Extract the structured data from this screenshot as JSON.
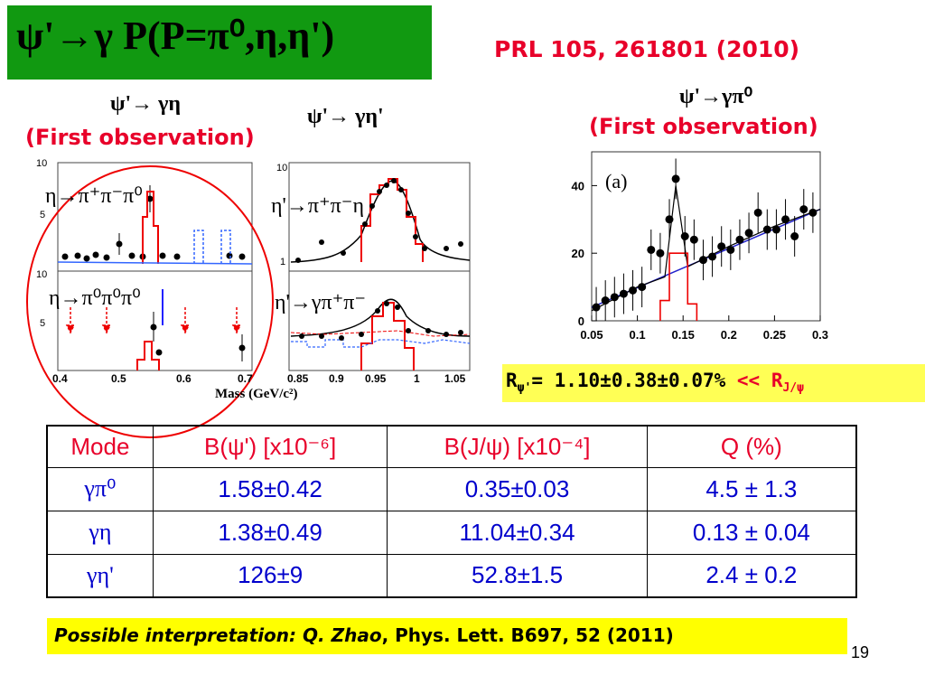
{
  "title": "ψ'→γ P(P=π⁰,η,η')",
  "reference": "PRL 105, 261801 (2010)",
  "panels": {
    "eta": {
      "heading": "ψ'→ γη",
      "note": "(First observation)",
      "top_label": "η→π⁺π⁻π⁰",
      "bottom_label": "η→π⁰π⁰π⁰"
    },
    "etaprime": {
      "heading": "ψ'→ γη'",
      "top_label": "η'→π⁺π⁻η",
      "bottom_label": "η'→γπ⁺π⁻"
    },
    "pi0": {
      "heading": "ψ'→γπ⁰",
      "note": "(First observation)",
      "panel_tag": "(a)"
    }
  },
  "mass_axis_label": "Mass (GeV/c²)",
  "ratio": {
    "lhs": "R",
    "sub": "ψ'",
    "value": "= 1.10±0.38±0.07%",
    "cmp": "<< R",
    "cmp_sub": "J/ψ"
  },
  "table": {
    "headers": [
      "Mode",
      "B(ψ') [x10⁻⁶]",
      "B(J/ψ) [x10⁻⁴]",
      "Q   (%)"
    ],
    "rows": [
      [
        "γπ⁰",
        "1.58±0.42",
        "0.35±0.03",
        "4.5 ± 1.3"
      ],
      [
        "γη",
        "1.38±0.49",
        "11.04±0.34",
        "0.13 ± 0.04"
      ],
      [
        "γη'",
        "126±9",
        "52.8±1.5",
        "2.4 ± 0.2"
      ]
    ]
  },
  "interpretation": {
    "lead": "Possible interpretation:",
    "author": "Q. Zhao",
    "citation": ", Phys. Lett. B697, 52 (2011)"
  },
  "page_number": "19",
  "chart_data": [
    {
      "type": "scatter",
      "panel": "pi0",
      "xlim": [
        0.05,
        0.3
      ],
      "ylim": [
        0,
        50
      ],
      "x_ticks": [
        "0.05",
        "0.1",
        "0.15",
        "0.2",
        "0.25",
        "0.3"
      ],
      "y_ticks": [
        "0",
        "20",
        "40"
      ],
      "series": [
        {
          "values": [
            [
              0.055,
              4
            ],
            [
              0.065,
              6
            ],
            [
              0.075,
              7
            ],
            [
              0.085,
              8
            ],
            [
              0.095,
              9
            ],
            [
              0.105,
              10
            ],
            [
              0.115,
              21
            ],
            [
              0.125,
              20
            ],
            [
              0.135,
              30
            ],
            [
              0.142,
              42
            ],
            [
              0.152,
              25
            ],
            [
              0.162,
              24
            ],
            [
              0.172,
              18
            ],
            [
              0.182,
              19
            ],
            [
              0.192,
              22
            ],
            [
              0.202,
              21
            ],
            [
              0.212,
              24
            ],
            [
              0.222,
              26
            ],
            [
              0.232,
              32
            ],
            [
              0.242,
              27
            ],
            [
              0.252,
              27
            ],
            [
              0.262,
              30
            ],
            [
              0.272,
              25
            ],
            [
              0.282,
              33
            ],
            [
              0.292,
              32
            ]
          ]
        }
      ],
      "fit_curve": [
        [
          0.05,
          3
        ],
        [
          0.1,
          10
        ],
        [
          0.13,
          13
        ],
        [
          0.142,
          40
        ],
        [
          0.155,
          16
        ],
        [
          0.2,
          22
        ],
        [
          0.25,
          28
        ],
        [
          0.3,
          33
        ]
      ],
      "signal_histogram": [
        [
          0.125,
          6
        ],
        [
          0.135,
          20
        ],
        [
          0.145,
          20
        ],
        [
          0.155,
          5
        ]
      ],
      "error_bar": 6
    }
  ],
  "eta_panels": {
    "top_left": {
      "x_ticks": [],
      "y_ticks": [
        "10",
        "5"
      ]
    },
    "bottom_left": {
      "x_ticks": [
        "0.4",
        "0.5",
        "0.6",
        "0.7"
      ],
      "y_ticks": [
        "10",
        "5"
      ]
    },
    "top_right": {
      "y_ticks": [
        "10",
        "1"
      ]
    },
    "bottom_right": {
      "x_ticks": [
        "0.85",
        "0.9",
        "0.95",
        "1",
        "1.05"
      ],
      "y_ticks": []
    }
  }
}
